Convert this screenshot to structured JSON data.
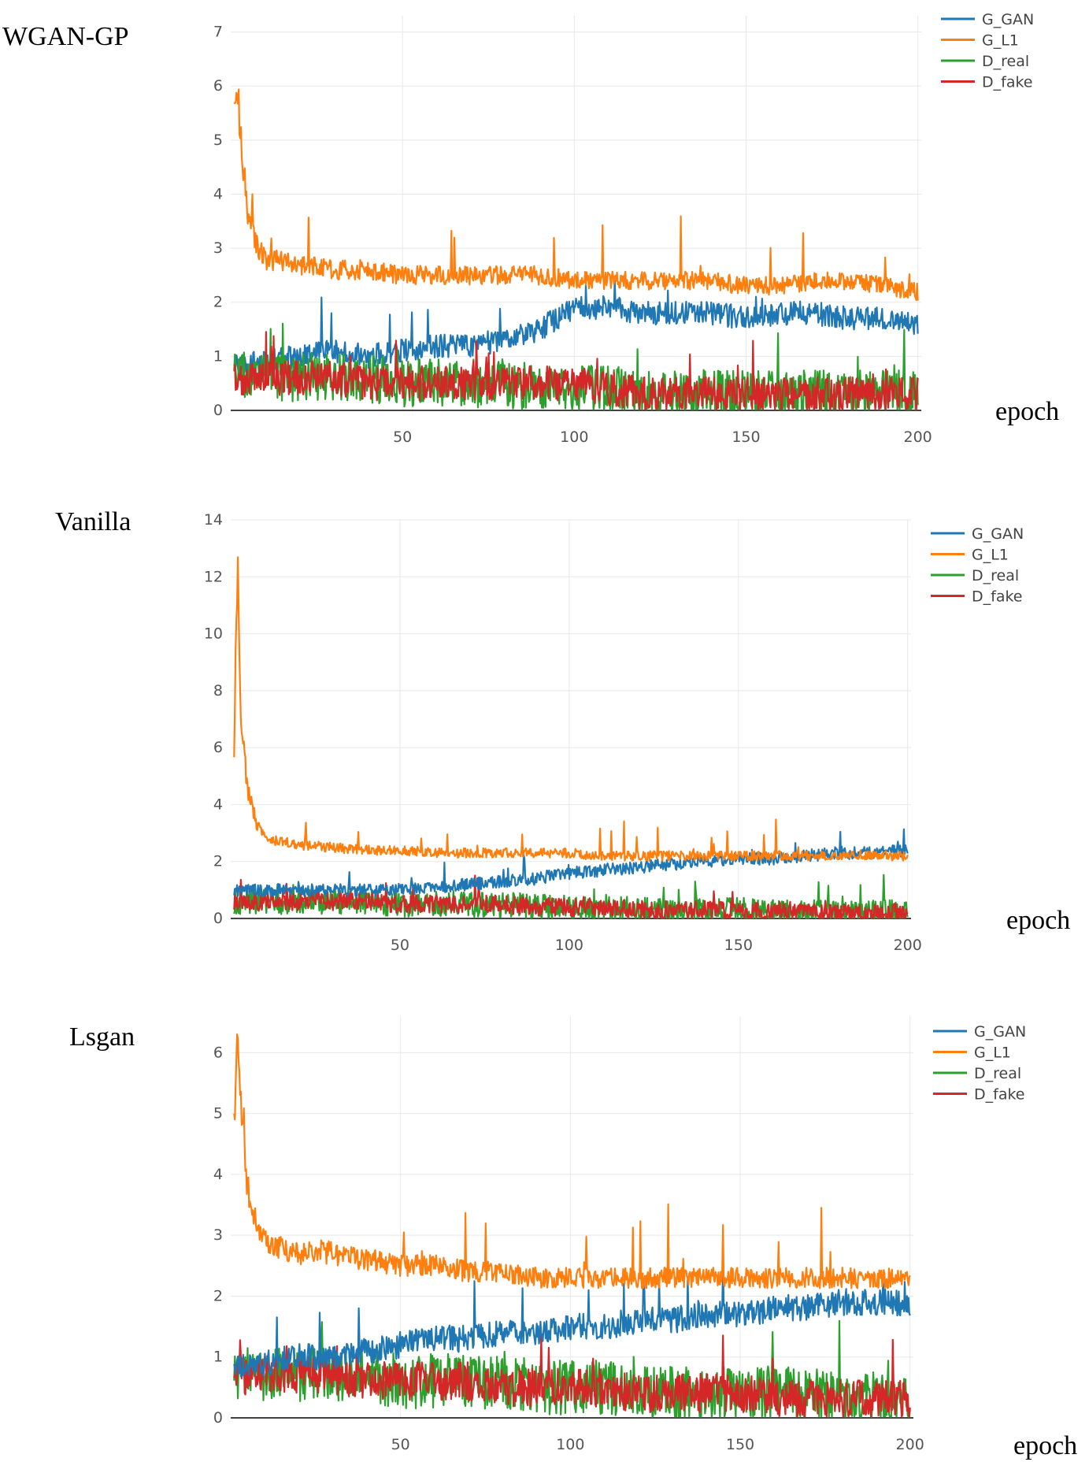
{
  "chart_data": [
    {
      "type": "line",
      "title": "WGAN-GP",
      "xlabel": "epoch",
      "ylabel": "",
      "xlim": [
        0,
        201
      ],
      "ylim": [
        0,
        7.3
      ],
      "xticks": [
        "50",
        "100",
        "150",
        "200"
      ],
      "yticks": [
        "0",
        "1",
        "2",
        "3",
        "4",
        "5",
        "6",
        "7"
      ],
      "legend": [
        "G_GAN",
        "G_L1",
        "D_real",
        "D_fake"
      ],
      "colors": {
        "G_GAN": "#1f77b4",
        "G_L1": "#ff7f0e",
        "D_real": "#2ca02c",
        "D_fake": "#d62728"
      },
      "series": [
        {
          "name": "G_GAN",
          "x": [
            1,
            10,
            20,
            30,
            40,
            50,
            60,
            70,
            80,
            90,
            97,
            100,
            110,
            120,
            130,
            140,
            150,
            160,
            170,
            180,
            190,
            200
          ],
          "values": [
            0.8,
            0.9,
            1.0,
            1.1,
            1.0,
            1.1,
            1.2,
            1.2,
            1.3,
            1.5,
            1.8,
            1.9,
            1.9,
            1.8,
            1.8,
            1.8,
            1.7,
            1.8,
            1.8,
            1.7,
            1.7,
            1.6
          ]
        },
        {
          "name": "G_L1",
          "x": [
            1,
            2,
            3,
            5,
            8,
            10,
            20,
            30,
            40,
            50,
            60,
            70,
            80,
            90,
            100,
            110,
            120,
            130,
            140,
            150,
            160,
            170,
            180,
            190,
            200
          ],
          "values": [
            5.5,
            6.0,
            5.0,
            3.6,
            3.0,
            2.8,
            2.7,
            2.6,
            2.6,
            2.5,
            2.5,
            2.5,
            2.5,
            2.5,
            2.4,
            2.4,
            2.4,
            2.4,
            2.4,
            2.3,
            2.3,
            2.4,
            2.4,
            2.3,
            2.2
          ]
        },
        {
          "name": "D_real",
          "x": [
            1,
            10,
            20,
            30,
            40,
            50,
            60,
            70,
            80,
            90,
            100,
            110,
            120,
            130,
            140,
            150,
            160,
            170,
            180,
            190,
            200
          ],
          "values": [
            0.6,
            0.6,
            0.6,
            0.6,
            0.6,
            0.5,
            0.5,
            0.5,
            0.5,
            0.4,
            0.4,
            0.4,
            0.3,
            0.3,
            0.3,
            0.3,
            0.3,
            0.3,
            0.3,
            0.3,
            0.3
          ]
        },
        {
          "name": "D_fake",
          "x": [
            1,
            10,
            20,
            30,
            40,
            50,
            60,
            70,
            80,
            90,
            100,
            110,
            120,
            130,
            140,
            150,
            160,
            170,
            180,
            190,
            200
          ],
          "values": [
            0.6,
            0.6,
            0.6,
            0.6,
            0.5,
            0.5,
            0.5,
            0.5,
            0.5,
            0.5,
            0.5,
            0.4,
            0.3,
            0.3,
            0.3,
            0.3,
            0.3,
            0.3,
            0.3,
            0.3,
            0.3
          ]
        }
      ]
    },
    {
      "type": "line",
      "title": "Vanilla",
      "xlabel": "epoch",
      "ylabel": "",
      "xlim": [
        0,
        201
      ],
      "ylim": [
        0,
        14
      ],
      "xticks": [
        "50",
        "100",
        "150",
        "200"
      ],
      "yticks": [
        "0",
        "2",
        "4",
        "6",
        "8",
        "10",
        "12",
        "14"
      ],
      "legend": [
        "G_GAN",
        "G_L1",
        "D_real",
        "D_fake"
      ],
      "colors": {
        "G_GAN": "#1f77b4",
        "G_L1": "#ff7f0e",
        "D_real": "#2ca02c",
        "D_fake": "#d62728"
      },
      "series": [
        {
          "name": "G_GAN",
          "x": [
            1,
            10,
            20,
            30,
            40,
            50,
            60,
            70,
            80,
            90,
            100,
            110,
            120,
            130,
            140,
            150,
            160,
            170,
            180,
            190,
            200
          ],
          "values": [
            1.0,
            1.0,
            1.0,
            1.0,
            1.0,
            1.0,
            1.1,
            1.2,
            1.3,
            1.4,
            1.6,
            1.7,
            1.8,
            1.9,
            2.0,
            2.1,
            2.1,
            2.2,
            2.3,
            2.3,
            2.4
          ]
        },
        {
          "name": "G_L1",
          "x": [
            1,
            2,
            3,
            5,
            8,
            10,
            20,
            30,
            40,
            50,
            60,
            70,
            80,
            90,
            100,
            110,
            120,
            130,
            140,
            150,
            160,
            170,
            180,
            190,
            200
          ],
          "values": [
            6.0,
            12.5,
            7.0,
            4.5,
            3.2,
            2.8,
            2.6,
            2.5,
            2.4,
            2.4,
            2.3,
            2.3,
            2.3,
            2.3,
            2.3,
            2.2,
            2.2,
            2.2,
            2.2,
            2.2,
            2.2,
            2.2,
            2.2,
            2.2,
            2.2
          ]
        },
        {
          "name": "D_real",
          "x": [
            1,
            10,
            20,
            30,
            40,
            50,
            60,
            70,
            80,
            90,
            100,
            110,
            120,
            130,
            140,
            150,
            160,
            170,
            180,
            190,
            200
          ],
          "values": [
            0.6,
            0.6,
            0.6,
            0.6,
            0.6,
            0.5,
            0.5,
            0.5,
            0.5,
            0.4,
            0.4,
            0.4,
            0.3,
            0.3,
            0.3,
            0.3,
            0.2,
            0.2,
            0.2,
            0.2,
            0.2
          ]
        },
        {
          "name": "D_fake",
          "x": [
            1,
            10,
            20,
            30,
            40,
            50,
            60,
            70,
            80,
            90,
            100,
            110,
            120,
            130,
            140,
            150,
            160,
            170,
            180,
            190,
            200
          ],
          "values": [
            0.6,
            0.6,
            0.6,
            0.6,
            0.6,
            0.5,
            0.5,
            0.5,
            0.5,
            0.4,
            0.4,
            0.4,
            0.3,
            0.3,
            0.3,
            0.3,
            0.2,
            0.2,
            0.2,
            0.2,
            0.2
          ]
        }
      ]
    },
    {
      "type": "line",
      "title": "Lsgan",
      "xlabel": "epoch",
      "ylabel": "",
      "xlim": [
        0,
        201
      ],
      "ylim": [
        0,
        6.6
      ],
      "xticks": [
        "50",
        "100",
        "150",
        "200"
      ],
      "yticks": [
        "0",
        "1",
        "2",
        "3",
        "4",
        "5",
        "6"
      ],
      "legend": [
        "G_GAN",
        "G_L1",
        "D_real",
        "D_fake"
      ],
      "colors": {
        "G_GAN": "#1f77b4",
        "G_L1": "#ff7f0e",
        "D_real": "#2ca02c",
        "D_fake": "#d62728"
      },
      "series": [
        {
          "name": "G_GAN",
          "x": [
            1,
            10,
            20,
            30,
            40,
            50,
            60,
            70,
            80,
            90,
            100,
            110,
            120,
            130,
            140,
            150,
            160,
            170,
            180,
            190,
            200
          ],
          "values": [
            0.9,
            0.9,
            1.0,
            1.0,
            1.1,
            1.2,
            1.3,
            1.3,
            1.4,
            1.4,
            1.5,
            1.5,
            1.6,
            1.6,
            1.7,
            1.7,
            1.8,
            1.8,
            1.9,
            1.9,
            1.9
          ]
        },
        {
          "name": "G_L1",
          "x": [
            1,
            2,
            3,
            5,
            8,
            10,
            20,
            30,
            40,
            50,
            60,
            70,
            80,
            90,
            100,
            110,
            120,
            130,
            140,
            150,
            160,
            170,
            180,
            190,
            200
          ],
          "values": [
            5.0,
            6.2,
            5.0,
            3.8,
            3.1,
            2.9,
            2.7,
            2.7,
            2.6,
            2.5,
            2.5,
            2.4,
            2.4,
            2.3,
            2.3,
            2.3,
            2.3,
            2.3,
            2.3,
            2.3,
            2.3,
            2.3,
            2.3,
            2.3,
            2.3
          ]
        },
        {
          "name": "D_real",
          "x": [
            1,
            10,
            20,
            30,
            40,
            50,
            60,
            70,
            80,
            90,
            100,
            110,
            120,
            130,
            140,
            150,
            160,
            170,
            180,
            190,
            200
          ],
          "values": [
            0.7,
            0.7,
            0.7,
            0.7,
            0.7,
            0.6,
            0.6,
            0.6,
            0.6,
            0.5,
            0.5,
            0.5,
            0.4,
            0.4,
            0.4,
            0.4,
            0.4,
            0.4,
            0.3,
            0.3,
            0.3
          ]
        },
        {
          "name": "D_fake",
          "x": [
            1,
            10,
            20,
            30,
            40,
            50,
            60,
            70,
            80,
            90,
            100,
            110,
            120,
            130,
            140,
            150,
            160,
            170,
            180,
            190,
            200
          ],
          "values": [
            0.7,
            0.7,
            0.7,
            0.7,
            0.6,
            0.6,
            0.6,
            0.6,
            0.5,
            0.5,
            0.5,
            0.5,
            0.4,
            0.4,
            0.4,
            0.4,
            0.3,
            0.3,
            0.3,
            0.3,
            0.3
          ]
        }
      ]
    }
  ]
}
